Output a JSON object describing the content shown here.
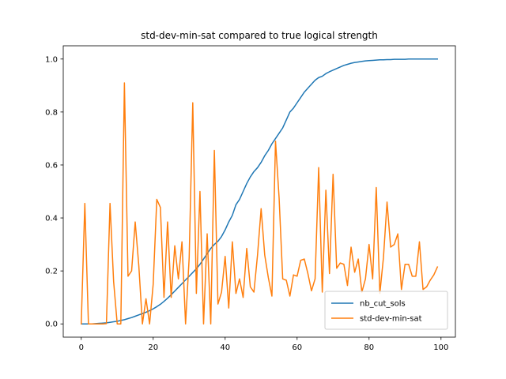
{
  "chart_data": {
    "type": "line",
    "title": "std-dev-min-sat compared to true logical strength",
    "xlabel": "",
    "ylabel": "",
    "xlim": [
      -5,
      104
    ],
    "ylim": [
      -0.05,
      1.05
    ],
    "xticks": [
      0,
      20,
      40,
      60,
      80,
      100
    ],
    "yticks": [
      0.0,
      0.2,
      0.4,
      0.6,
      0.8,
      1.0
    ],
    "xtick_labels": [
      "0",
      "20",
      "40",
      "60",
      "80",
      "100"
    ],
    "ytick_labels": [
      "0.0",
      "0.2",
      "0.4",
      "0.6",
      "0.8",
      "1.0"
    ],
    "legend_position": "lower-right",
    "grid": false,
    "series": [
      {
        "name": "nb_cut_sols",
        "color": "#1f77b4",
        "values": [
          0.0,
          0.0,
          0.0,
          0.0,
          0.001,
          0.002,
          0.003,
          0.004,
          0.006,
          0.008,
          0.01,
          0.013,
          0.016,
          0.02,
          0.024,
          0.029,
          0.034,
          0.039,
          0.044,
          0.05,
          0.057,
          0.065,
          0.074,
          0.085,
          0.097,
          0.11,
          0.124,
          0.138,
          0.152,
          0.166,
          0.18,
          0.194,
          0.208,
          0.225,
          0.245,
          0.265,
          0.285,
          0.3,
          0.312,
          0.33,
          0.355,
          0.385,
          0.41,
          0.45,
          0.47,
          0.5,
          0.53,
          0.555,
          0.575,
          0.59,
          0.61,
          0.635,
          0.655,
          0.68,
          0.7,
          0.72,
          0.74,
          0.77,
          0.8,
          0.815,
          0.835,
          0.855,
          0.875,
          0.89,
          0.905,
          0.92,
          0.93,
          0.935,
          0.945,
          0.952,
          0.958,
          0.964,
          0.97,
          0.976,
          0.98,
          0.984,
          0.987,
          0.989,
          0.991,
          0.993,
          0.994,
          0.995,
          0.996,
          0.997,
          0.997,
          0.998,
          0.998,
          0.999,
          0.999,
          0.999,
          0.999,
          1.0,
          1.0,
          1.0,
          1.0,
          1.0,
          1.0,
          1.0,
          1.0,
          1.0
        ]
      },
      {
        "name": "std-dev-min-sat",
        "color": "#ff7f0e",
        "values": [
          0.0,
          0.455,
          0.0,
          0.0,
          0.0,
          0.0,
          0.0,
          0.001,
          0.455,
          0.16,
          0.0,
          0.0,
          0.91,
          0.18,
          0.2,
          0.385,
          0.22,
          0.0,
          0.095,
          0.0,
          0.15,
          0.47,
          0.44,
          0.1,
          0.385,
          0.1,
          0.295,
          0.17,
          0.31,
          0.0,
          0.25,
          0.835,
          0.115,
          0.5,
          0.0,
          0.34,
          0.0,
          0.655,
          0.075,
          0.12,
          0.255,
          0.06,
          0.31,
          0.115,
          0.17,
          0.1,
          0.285,
          0.14,
          0.12,
          0.26,
          0.435,
          0.26,
          0.175,
          0.105,
          0.69,
          0.475,
          0.17,
          0.165,
          0.105,
          0.185,
          0.18,
          0.24,
          0.245,
          0.19,
          0.125,
          0.17,
          0.59,
          0.12,
          0.505,
          0.19,
          0.565,
          0.21,
          0.23,
          0.225,
          0.145,
          0.29,
          0.195,
          0.245,
          0.12,
          0.17,
          0.3,
          0.17,
          0.515,
          0.115,
          0.25,
          0.46,
          0.29,
          0.3,
          0.34,
          0.13,
          0.225,
          0.225,
          0.18,
          0.18,
          0.31,
          0.13,
          0.14,
          0.165,
          0.185,
          0.215
        ]
      }
    ]
  }
}
